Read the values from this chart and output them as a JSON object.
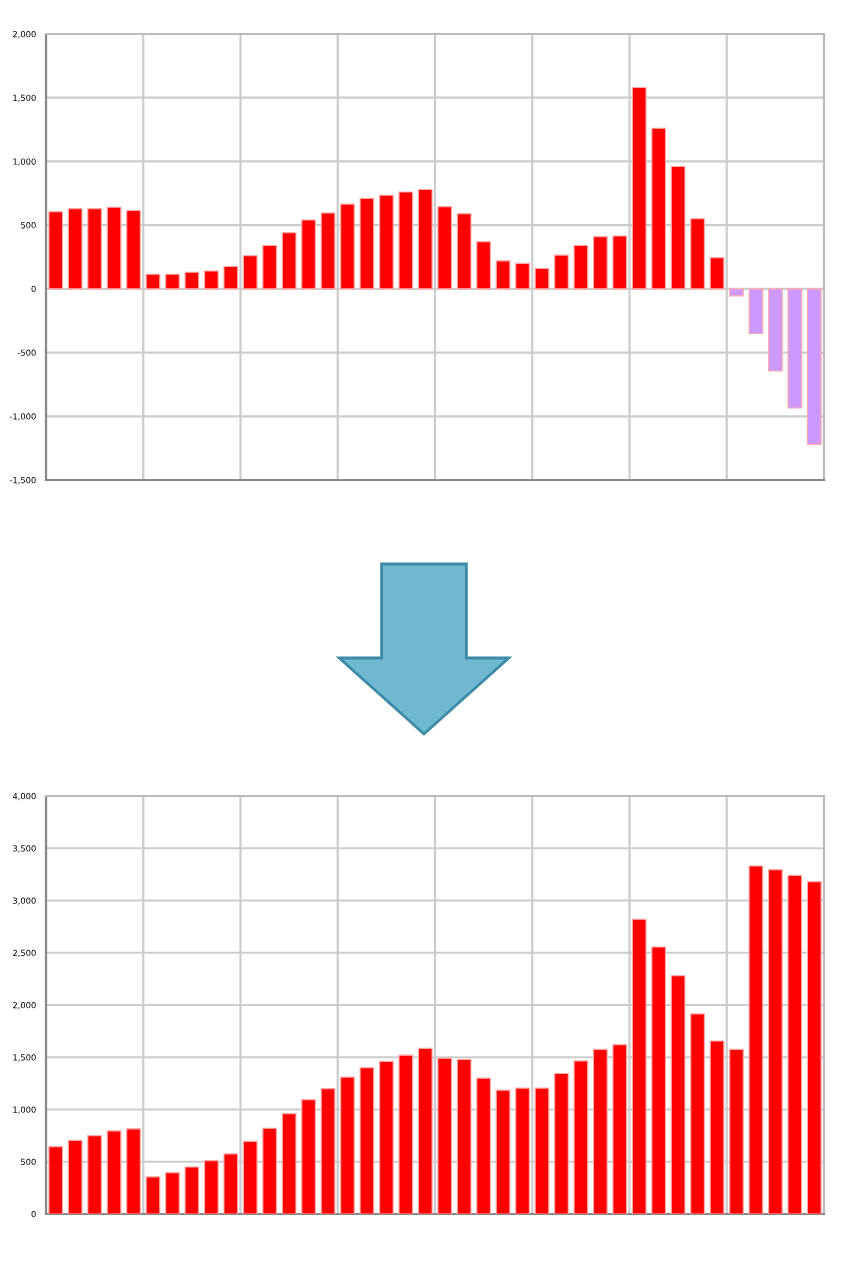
{
  "chart_data": [
    {
      "type": "bar",
      "categories": [
        null,
        null,
        null,
        null,
        null,
        null,
        null,
        null,
        null,
        null,
        null,
        null,
        null,
        null,
        null,
        null,
        null,
        null,
        null,
        null,
        null,
        null,
        null,
        null,
        null,
        null,
        null,
        null,
        null,
        null,
        null,
        null,
        null,
        null,
        null,
        null,
        null,
        null,
        null,
        null
      ],
      "values": [
        605,
        630,
        630,
        640,
        615,
        115,
        115,
        130,
        140,
        175,
        260,
        340,
        440,
        540,
        595,
        665,
        710,
        735,
        760,
        780,
        645,
        590,
        370,
        220,
        200,
        160,
        265,
        340,
        410,
        415,
        1580,
        1260,
        960,
        550,
        245,
        -55,
        -350,
        -645,
        -935,
        -1220
      ],
      "colors": [
        "#ff0000",
        "#ff0000",
        "#ff0000",
        "#ff0000",
        "#ff0000",
        "#ff0000",
        "#ff0000",
        "#ff0000",
        "#ff0000",
        "#ff0000",
        "#ff0000",
        "#ff0000",
        "#ff0000",
        "#ff0000",
        "#ff0000",
        "#ff0000",
        "#ff0000",
        "#ff0000",
        "#ff0000",
        "#ff0000",
        "#ff0000",
        "#ff0000",
        "#ff0000",
        "#ff0000",
        "#ff0000",
        "#ff0000",
        "#ff0000",
        "#ff0000",
        "#ff0000",
        "#ff0000",
        "#ff0000",
        "#ff0000",
        "#ff0000",
        "#ff0000",
        "#ff0000",
        "#cc99ff",
        "#cc99ff",
        "#cc99ff",
        "#cc99ff",
        "#cc99ff"
      ],
      "ylim": [
        -1500,
        2000
      ],
      "yticks": [
        {
          "value": -1500,
          "label": "-1,500"
        },
        {
          "value": -1000,
          "label": "-1,000"
        },
        -500,
        0,
        500,
        {
          "value": 1000,
          "label": "1,000"
        },
        {
          "value": 1500,
          "label": "1,500"
        },
        {
          "value": 2000,
          "label": "2,000"
        }
      ],
      "grid": true,
      "legend": false
    },
    {
      "type": "bar",
      "categories": [
        null,
        null,
        null,
        null,
        null,
        null,
        null,
        null,
        null,
        null,
        null,
        null,
        null,
        null,
        null,
        null,
        null,
        null,
        null,
        null,
        null,
        null,
        null,
        null,
        null,
        null,
        null,
        null,
        null,
        null,
        null,
        null,
        null,
        null,
        null,
        null,
        null,
        null,
        null,
        null
      ],
      "values": [
        645,
        705,
        750,
        795,
        815,
        355,
        395,
        450,
        510,
        575,
        695,
        820,
        960,
        1095,
        1200,
        1310,
        1400,
        1460,
        1520,
        1585,
        1490,
        1480,
        1300,
        1185,
        1205,
        1205,
        1345,
        1465,
        1575,
        1620,
        2820,
        2555,
        2280,
        1915,
        1655,
        1575,
        3330,
        3295,
        3240,
        3180
      ],
      "color": "#ff0000",
      "ylim": [
        0,
        4000
      ],
      "yticks": [
        0,
        500,
        {
          "value": 1000,
          "label": "1,000"
        },
        {
          "value": 1500,
          "label": "1,500"
        },
        {
          "value": 2000,
          "label": "2,000"
        },
        {
          "value": 2500,
          "label": "2,500"
        },
        {
          "value": 3000,
          "label": "3,000"
        },
        {
          "value": 3500,
          "label": "3,500"
        },
        {
          "value": 4000,
          "label": "4,000"
        }
      ],
      "grid": true,
      "legend": false
    }
  ]
}
